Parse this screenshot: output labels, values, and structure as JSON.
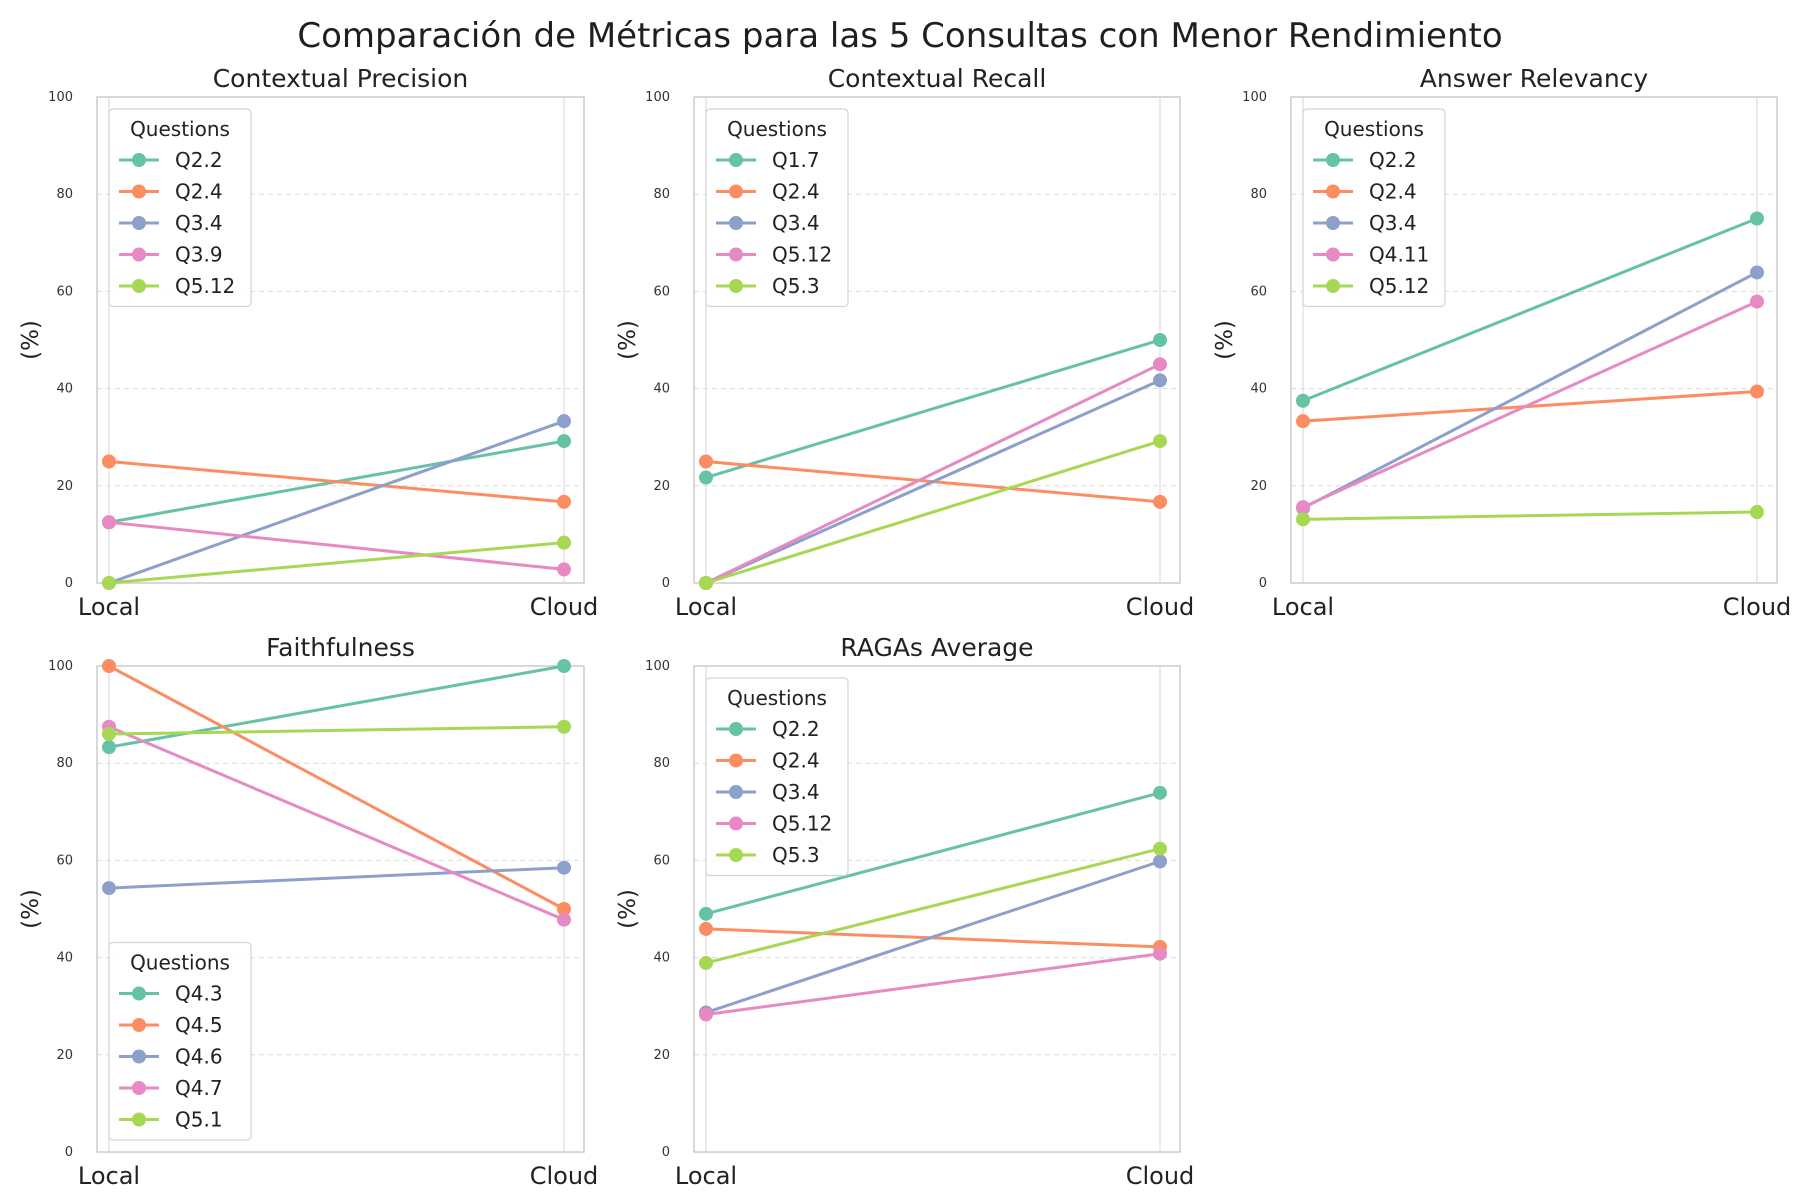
{
  "title": "Comparación de Métricas para las 5 Consultas con Menor Rendimiento",
  "chart_data": [
    {
      "type": "line",
      "title": "Contextual Precision",
      "ylabel": "(%)",
      "x": [
        "Local",
        "Cloud"
      ],
      "ylim": [
        0,
        100
      ],
      "yticks": [
        0,
        20,
        40,
        60,
        80,
        100
      ],
      "legend": {
        "title": "Questions",
        "position": "upper-left"
      },
      "series": [
        {
          "name": "Q2.2",
          "color": "#66c2a5",
          "values": [
            12.5,
            29.2
          ]
        },
        {
          "name": "Q2.4",
          "color": "#fc8d62",
          "values": [
            25.0,
            16.7
          ]
        },
        {
          "name": "Q3.4",
          "color": "#8da0cb",
          "values": [
            0.0,
            33.3
          ]
        },
        {
          "name": "Q3.9",
          "color": "#e78ac3",
          "values": [
            12.5,
            2.8
          ]
        },
        {
          "name": "Q5.12",
          "color": "#a6d854",
          "values": [
            0.0,
            8.3
          ]
        }
      ]
    },
    {
      "type": "line",
      "title": "Contextual Recall",
      "ylabel": "(%)",
      "x": [
        "Local",
        "Cloud"
      ],
      "ylim": [
        0,
        100
      ],
      "yticks": [
        0,
        20,
        40,
        60,
        80,
        100
      ],
      "legend": {
        "title": "Questions",
        "position": "upper-left"
      },
      "series": [
        {
          "name": "Q1.7",
          "color": "#66c2a5",
          "values": [
            21.7,
            50.0
          ]
        },
        {
          "name": "Q2.4",
          "color": "#fc8d62",
          "values": [
            25.0,
            16.7
          ]
        },
        {
          "name": "Q3.4",
          "color": "#8da0cb",
          "values": [
            0.0,
            41.7
          ]
        },
        {
          "name": "Q5.12",
          "color": "#e78ac3",
          "values": [
            0.0,
            45.0
          ]
        },
        {
          "name": "Q5.3",
          "color": "#a6d854",
          "values": [
            0.0,
            29.2
          ]
        }
      ]
    },
    {
      "type": "line",
      "title": "Answer Relevancy",
      "ylabel": "(%)",
      "x": [
        "Local",
        "Cloud"
      ],
      "ylim": [
        0,
        100
      ],
      "yticks": [
        0,
        20,
        40,
        60,
        80,
        100
      ],
      "legend": {
        "title": "Questions",
        "position": "upper-left"
      },
      "series": [
        {
          "name": "Q2.2",
          "color": "#66c2a5",
          "values": [
            37.5,
            75.0
          ]
        },
        {
          "name": "Q2.4",
          "color": "#fc8d62",
          "values": [
            33.3,
            39.4
          ]
        },
        {
          "name": "Q3.4",
          "color": "#8da0cb",
          "values": [
            15.4,
            63.9
          ]
        },
        {
          "name": "Q4.11",
          "color": "#e78ac3",
          "values": [
            15.6,
            57.9
          ]
        },
        {
          "name": "Q5.12",
          "color": "#a6d854",
          "values": [
            13.1,
            14.6
          ]
        }
      ]
    },
    {
      "type": "line",
      "title": "Faithfulness",
      "ylabel": "(%)",
      "x": [
        "Local",
        "Cloud"
      ],
      "ylim": [
        0,
        100
      ],
      "yticks": [
        0,
        20,
        40,
        60,
        80,
        100
      ],
      "legend": {
        "title": "Questions",
        "position": "lower-left"
      },
      "series": [
        {
          "name": "Q4.3",
          "color": "#66c2a5",
          "values": [
            83.3,
            100.0
          ]
        },
        {
          "name": "Q4.5",
          "color": "#fc8d62",
          "values": [
            100.0,
            50.0
          ]
        },
        {
          "name": "Q4.6",
          "color": "#8da0cb",
          "values": [
            54.3,
            58.5
          ]
        },
        {
          "name": "Q4.7",
          "color": "#e78ac3",
          "values": [
            87.5,
            47.8
          ]
        },
        {
          "name": "Q5.1",
          "color": "#a6d854",
          "values": [
            86.0,
            87.5
          ]
        }
      ]
    },
    {
      "type": "line",
      "title": "RAGAs Average",
      "ylabel": "(%)",
      "x": [
        "Local",
        "Cloud"
      ],
      "ylim": [
        0,
        100
      ],
      "yticks": [
        0,
        20,
        40,
        60,
        80,
        100
      ],
      "legend": {
        "title": "Questions",
        "position": "upper-left"
      },
      "series": [
        {
          "name": "Q2.2",
          "color": "#66c2a5",
          "values": [
            49.0,
            73.9
          ]
        },
        {
          "name": "Q2.4",
          "color": "#fc8d62",
          "values": [
            45.9,
            42.2
          ]
        },
        {
          "name": "Q3.4",
          "color": "#8da0cb",
          "values": [
            28.7,
            59.8
          ]
        },
        {
          "name": "Q5.12",
          "color": "#e78ac3",
          "values": [
            28.3,
            40.8
          ]
        },
        {
          "name": "Q5.3",
          "color": "#a6d854",
          "values": [
            38.9,
            62.4
          ]
        }
      ]
    }
  ]
}
